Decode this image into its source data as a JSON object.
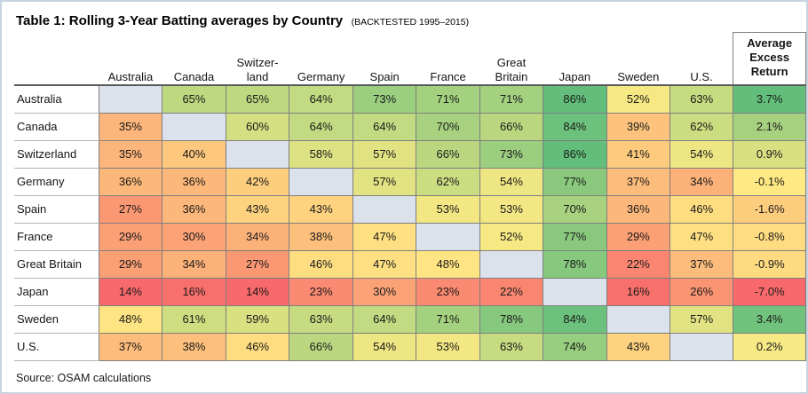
{
  "title": {
    "main": "Table 1: Rolling 3-Year Batting averages by Country",
    "qualifier": "(BACKTESTED 1995–2015)"
  },
  "source_note": "Source: OSAM calculations",
  "chart_data": {
    "type": "heatmap",
    "title": "Table 1: Rolling 3-Year Batting averages by Country (Backtested 1995–2015)",
    "value_suffix": "%",
    "columns": [
      "Australia",
      "Canada",
      "Switzer-\nland",
      "Germany",
      "Spain",
      "France",
      "Great\nBritain",
      "Japan",
      "Sweden",
      "U.S."
    ],
    "excess_header": "Average\nExcess\nReturn",
    "rows": [
      {
        "label": "Australia",
        "values": [
          null,
          65,
          65,
          64,
          73,
          71,
          71,
          86,
          52,
          63
        ],
        "excess": 3.7
      },
      {
        "label": "Canada",
        "values": [
          35,
          null,
          60,
          64,
          64,
          70,
          66,
          84,
          39,
          62
        ],
        "excess": 2.1
      },
      {
        "label": "Switzerland",
        "values": [
          35,
          40,
          null,
          58,
          57,
          66,
          73,
          86,
          41,
          54
        ],
        "excess": 0.9
      },
      {
        "label": "Germany",
        "values": [
          36,
          36,
          42,
          null,
          57,
          62,
          54,
          77,
          37,
          34
        ],
        "excess": -0.1
      },
      {
        "label": "Spain",
        "values": [
          27,
          36,
          43,
          43,
          null,
          53,
          53,
          70,
          36,
          46
        ],
        "excess": -1.6
      },
      {
        "label": "France",
        "values": [
          29,
          30,
          34,
          38,
          47,
          null,
          52,
          77,
          29,
          47
        ],
        "excess": -0.8
      },
      {
        "label": "Great Britain",
        "values": [
          29,
          34,
          27,
          46,
          47,
          48,
          null,
          78,
          22,
          37
        ],
        "excess": -0.9
      },
      {
        "label": "Japan",
        "values": [
          14,
          16,
          14,
          23,
          30,
          23,
          22,
          null,
          16,
          26
        ],
        "excess": -7.0
      },
      {
        "label": "Sweden",
        "values": [
          48,
          61,
          59,
          63,
          64,
          71,
          78,
          84,
          null,
          57
        ],
        "excess": 3.4
      },
      {
        "label": "U.S.",
        "values": [
          37,
          38,
          46,
          66,
          54,
          53,
          63,
          74,
          43,
          null
        ],
        "excess": 0.2
      }
    ],
    "colors": {
      "scale_min": "#F8696B",
      "scale_mid": "#FFEB84",
      "scale_max": "#63BE7B",
      "diagonal": "#DBE2EB"
    },
    "matrix_scale": {
      "min": 14,
      "mid": 50,
      "max": 86
    },
    "excess_scale": {
      "min": -7.0,
      "mid": 0,
      "max": 3.7
    },
    "legend_position": "none",
    "grid": true
  }
}
